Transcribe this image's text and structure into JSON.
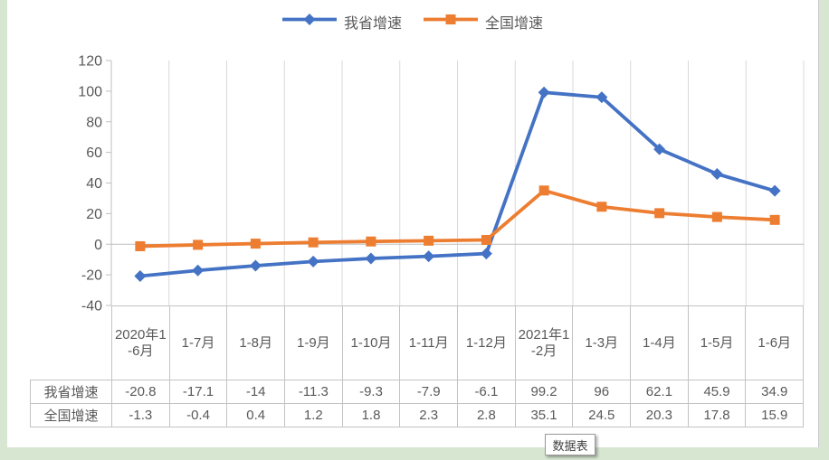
{
  "colors": {
    "page_bg": "#d6e6d0",
    "panel_bg": "#ffffff",
    "gridline": "#d9d9d9",
    "axis_line": "#bfbfbf",
    "table_border": "#c3c3c3",
    "text": "#595959",
    "series_province": "#4472C4",
    "series_national": "#ED7D31"
  },
  "legend": {
    "items": [
      {
        "label": "我省增速",
        "marker": "diamond",
        "color": "#4472C4"
      },
      {
        "label": "全国增速",
        "marker": "square",
        "color": "#ED7D31"
      }
    ]
  },
  "chart_data": {
    "type": "line",
    "categories": [
      "2020年1-6月",
      "1-7月",
      "1-8月",
      "1-9月",
      "1-10月",
      "1-11月",
      "1-12月",
      "2021年1-2月",
      "1-3月",
      "1-4月",
      "1-5月",
      "1-6月"
    ],
    "series": [
      {
        "name": "我省增速",
        "color": "#4472C4",
        "marker": "diamond",
        "values": [
          -20.8,
          -17.1,
          -14,
          -11.3,
          -9.3,
          -7.9,
          -6.1,
          99.2,
          96,
          62.1,
          45.9,
          34.9
        ]
      },
      {
        "name": "全国增速",
        "color": "#ED7D31",
        "marker": "square",
        "values": [
          -1.3,
          -0.4,
          0.4,
          1.2,
          1.8,
          2.3,
          2.8,
          35.1,
          24.5,
          20.3,
          17.8,
          15.9
        ]
      }
    ],
    "ylim": [
      -40,
      120
    ],
    "yticks": [
      120,
      100,
      80,
      60,
      40,
      20,
      0,
      -20,
      -40
    ],
    "grid": "vertical-only",
    "legend_position": "top",
    "data_table_shown": true
  },
  "tooltip": {
    "label": "数据表"
  }
}
